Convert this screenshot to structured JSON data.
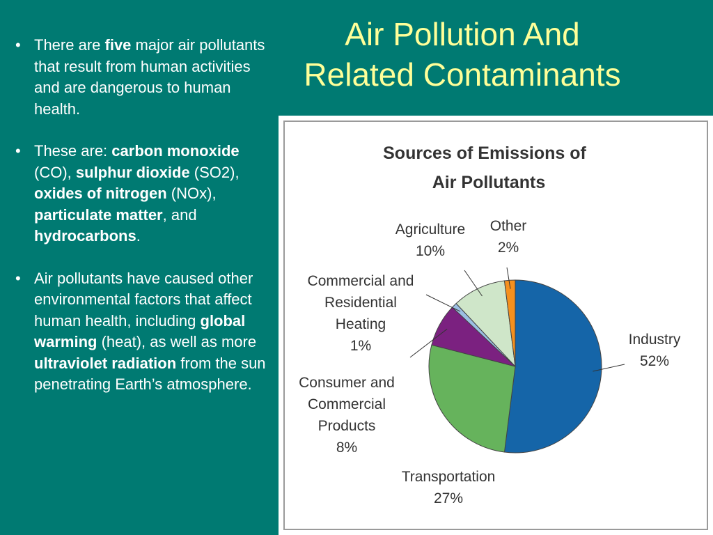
{
  "slide": {
    "title_line1": "Air Pollution And",
    "title_line2": "Related Contaminants",
    "bullet_marker": "•",
    "bullet1": {
      "t1": "There are ",
      "b1": "five",
      "t2": " major air pollutants that result from human activities and are dangerous to human health."
    },
    "bullet2": {
      "t1": "These are: ",
      "b1": "carbon monoxide",
      "t2": " (CO), ",
      "b2": "sulphur dioxide",
      "t3": " (SO2), ",
      "b3": "oxides of nitrogen",
      "t4": " (NOx), ",
      "b4": "particulate matter",
      "t5": ", and ",
      "b5": "hydrocarbons",
      "t6": "."
    },
    "bullet3": {
      "t1": "Air pollutants have caused other environmental factors that affect human health, including ",
      "b1": "global warming",
      "t2": " (heat), as well as more ",
      "b2": "ultraviolet radiation",
      "t3": " from the sun penetrating Earth’s atmosphere."
    }
  },
  "chart_data": {
    "type": "pie",
    "title_line1": "Sources of Emissions of",
    "title_line2": "Air Pollutants",
    "slices": [
      {
        "label_lines": [
          "Industry"
        ],
        "value_text": "52%",
        "value": 52,
        "color": "#1565a8"
      },
      {
        "label_lines": [
          "Transportation"
        ],
        "value_text": "27%",
        "value": 27,
        "color": "#66b35c"
      },
      {
        "label_lines": [
          "Consumer and",
          "Commercial",
          "Products"
        ],
        "value_text": "8%",
        "value": 8,
        "color": "#7b2180"
      },
      {
        "label_lines": [
          "Commercial and",
          "Residential",
          "Heating"
        ],
        "value_text": "1%",
        "value": 1,
        "color": "#9bbfe3"
      },
      {
        "label_lines": [
          "Agriculture"
        ],
        "value_text": "10%",
        "value": 10,
        "color": "#cfe6c9"
      },
      {
        "label_lines": [
          "Other"
        ],
        "value_text": "2%",
        "value": 2,
        "color": "#f5901e"
      }
    ]
  }
}
